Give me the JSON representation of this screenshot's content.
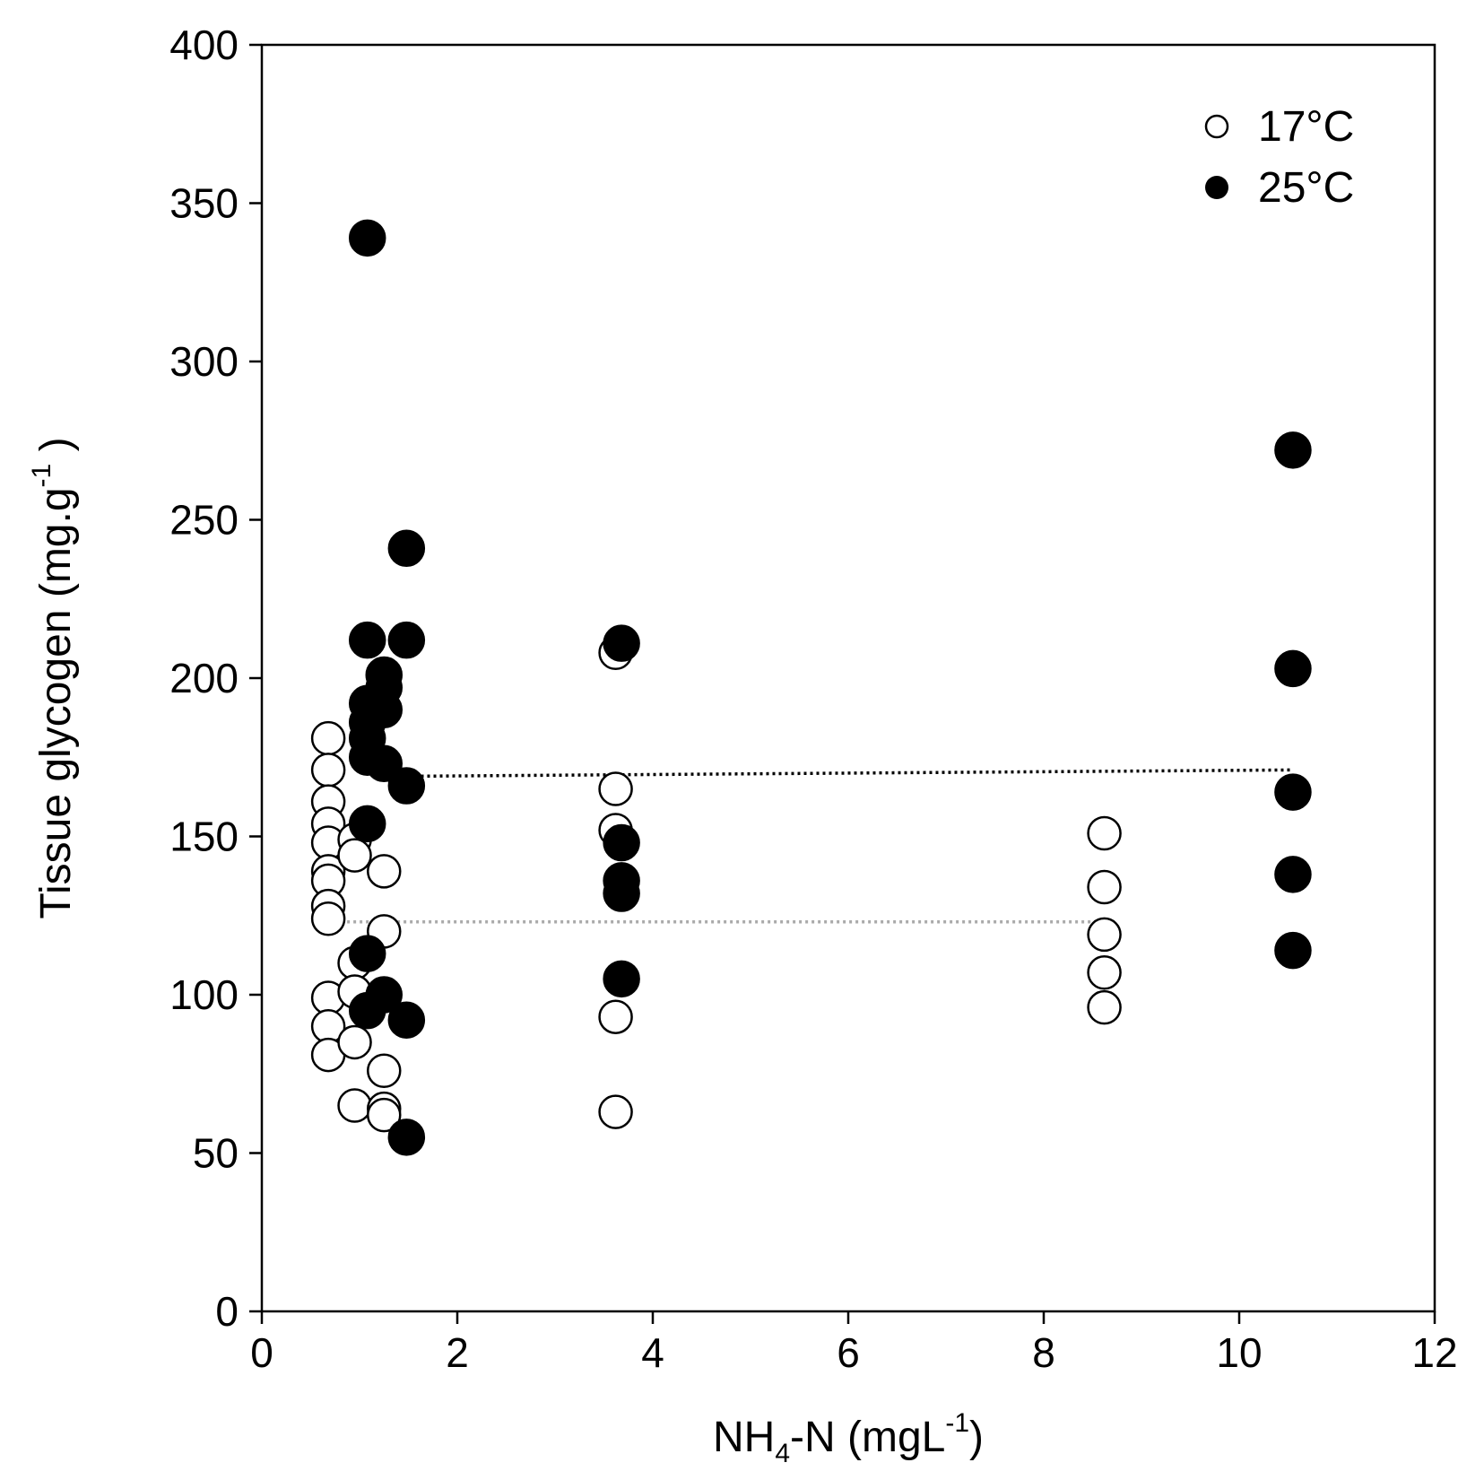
{
  "chart_data": {
    "type": "scatter",
    "xlabel": {
      "main": "NH",
      "sub": "4",
      "mid": "-N (mgL",
      "sup": "-1",
      "tail": ")"
    },
    "ylabel": {
      "main": "Tissue glycogen (mg.g",
      "sup": "-1",
      "tail": " )"
    },
    "xlim": [
      0,
      12
    ],
    "ylim": [
      0,
      400
    ],
    "xticks": [
      0,
      2,
      4,
      6,
      8,
      10,
      12
    ],
    "yticks": [
      0,
      50,
      100,
      150,
      200,
      250,
      300,
      350,
      400
    ],
    "xtick_labels": [
      "0",
      "2",
      "4",
      "6",
      "8",
      "10",
      "12"
    ],
    "ytick_labels": [
      "0",
      "50",
      "100",
      "150",
      "200",
      "250",
      "300",
      "350",
      "400"
    ],
    "legend_position": "top-right",
    "series": [
      {
        "name": "17°C",
        "marker": "open-circle",
        "color": "#000000",
        "fill": "#ffffff",
        "points": [
          [
            0.68,
            181
          ],
          [
            0.68,
            171
          ],
          [
            0.68,
            161
          ],
          [
            0.68,
            154
          ],
          [
            0.68,
            148
          ],
          [
            0.68,
            139
          ],
          [
            0.68,
            136
          ],
          [
            0.68,
            128
          ],
          [
            0.68,
            124
          ],
          [
            0.68,
            99
          ],
          [
            0.68,
            90
          ],
          [
            0.68,
            81
          ],
          [
            0.95,
            149
          ],
          [
            0.95,
            144
          ],
          [
            0.95,
            110
          ],
          [
            0.95,
            101
          ],
          [
            0.95,
            85
          ],
          [
            0.95,
            65
          ],
          [
            1.25,
            139
          ],
          [
            1.25,
            120
          ],
          [
            1.25,
            76
          ],
          [
            1.25,
            64
          ],
          [
            1.25,
            62
          ],
          [
            3.62,
            208
          ],
          [
            3.62,
            165
          ],
          [
            3.62,
            152
          ],
          [
            3.62,
            93
          ],
          [
            3.62,
            63
          ],
          [
            8.62,
            151
          ],
          [
            8.62,
            134
          ],
          [
            8.62,
            119
          ],
          [
            8.62,
            107
          ],
          [
            8.62,
            96
          ]
        ]
      },
      {
        "name": "25°C",
        "marker": "filled-circle",
        "color": "#000000",
        "fill": "#000000",
        "points": [
          [
            1.08,
            339
          ],
          [
            1.08,
            212
          ],
          [
            1.08,
            192
          ],
          [
            1.08,
            186
          ],
          [
            1.08,
            181
          ],
          [
            1.08,
            175
          ],
          [
            1.08,
            154
          ],
          [
            1.08,
            113
          ],
          [
            1.08,
            95
          ],
          [
            1.25,
            201
          ],
          [
            1.25,
            197
          ],
          [
            1.25,
            190
          ],
          [
            1.25,
            173
          ],
          [
            1.25,
            100
          ],
          [
            1.48,
            241
          ],
          [
            1.48,
            212
          ],
          [
            1.48,
            166
          ],
          [
            1.48,
            92
          ],
          [
            1.48,
            55
          ],
          [
            3.68,
            211
          ],
          [
            3.68,
            148
          ],
          [
            3.68,
            136
          ],
          [
            3.68,
            132
          ],
          [
            3.68,
            105
          ],
          [
            10.55,
            272
          ],
          [
            10.55,
            203
          ],
          [
            10.55,
            164
          ],
          [
            10.55,
            138
          ],
          [
            10.55,
            114
          ]
        ]
      }
    ],
    "trendlines": [
      {
        "series": "25°C",
        "x": [
          1.5,
          10.55
        ],
        "y": [
          169,
          171
        ],
        "color": "#000000",
        "style": "dotted"
      },
      {
        "series": "17°C",
        "x": [
          0.68,
          8.62
        ],
        "y": [
          123,
          123
        ],
        "color": "#aaaaaa",
        "style": "dotted"
      }
    ]
  }
}
